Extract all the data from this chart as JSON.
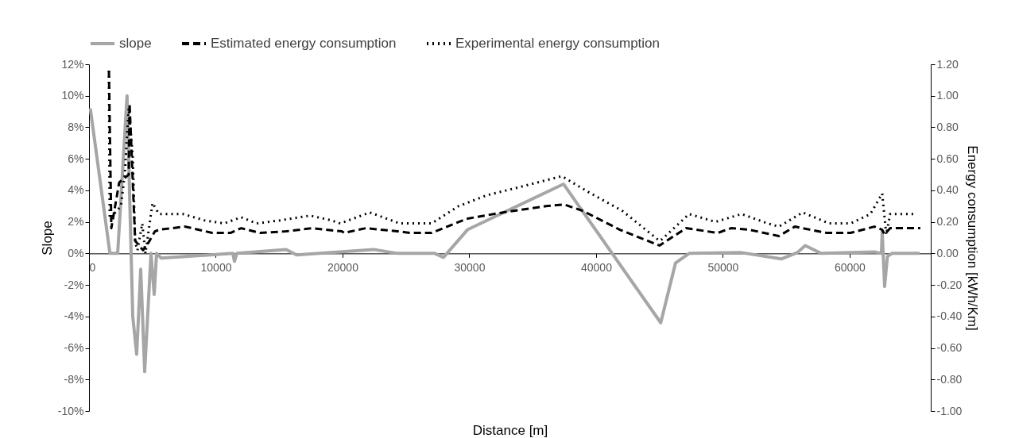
{
  "chart_data": {
    "type": "line",
    "xlabel": "Distance [m]",
    "ylabel": "Slope",
    "y2label": "Energy consumption [kWh/Km]",
    "xlim": [
      0,
      66400
    ],
    "xticks": [
      0,
      10000,
      20000,
      30000,
      40000,
      50000,
      60000
    ],
    "ylim": [
      -10,
      12
    ],
    "yticks": [
      {
        "value": -10,
        "label": "-10%"
      },
      {
        "value": -8,
        "label": "-8%"
      },
      {
        "value": -6,
        "label": "-6%"
      },
      {
        "value": -4,
        "label": "-4%"
      },
      {
        "value": -2,
        "label": "-2%"
      },
      {
        "value": 0,
        "label": "0%"
      },
      {
        "value": 2,
        "label": "2%"
      },
      {
        "value": 4,
        "label": "4%"
      },
      {
        "value": 6,
        "label": "6%"
      },
      {
        "value": 8,
        "label": "8%"
      },
      {
        "value": 10,
        "label": "10%"
      },
      {
        "value": 12,
        "label": "12%"
      }
    ],
    "y2lim": [
      -1,
      1.2
    ],
    "y2ticks": [
      {
        "value": -1,
        "label": "-1.00"
      },
      {
        "value": -0.8,
        "label": "-0.80"
      },
      {
        "value": -0.6,
        "label": "-0.60"
      },
      {
        "value": -0.4,
        "label": "-0.40"
      },
      {
        "value": -0.2,
        "label": "-0.20"
      },
      {
        "value": 0,
        "label": "0.00"
      },
      {
        "value": 0.2,
        "label": "0.20"
      },
      {
        "value": 0.4,
        "label": "0.40"
      },
      {
        "value": 0.6,
        "label": "0.60"
      },
      {
        "value": 0.8,
        "label": "0.80"
      },
      {
        "value": 1,
        "label": "1.00"
      },
      {
        "value": 1.2,
        "label": "1.20"
      }
    ],
    "grid": false,
    "legend": "top",
    "marker": "none",
    "series": [
      {
        "name": "slope",
        "color": "#a6a6a6",
        "line_style": "solid",
        "x": [
          100,
          1650,
          2260,
          3000,
          3450,
          3760,
          4080,
          4390,
          4890,
          5140,
          5330,
          5700,
          11350,
          11470,
          11660,
          15550,
          16370,
          22450,
          24330,
          27270,
          27960,
          29850,
          37430,
          45100,
          46270,
          47340,
          51480,
          54610,
          55870,
          56500,
          57750,
          61950,
          62510,
          62570,
          62760,
          62980,
          63330,
          65520
        ],
        "values": [
          9.2,
          0,
          0,
          10,
          -4,
          -6.4,
          -1,
          -7.5,
          0,
          -2.6,
          0,
          -0.3,
          0,
          -0.5,
          0,
          0.25,
          -0.1,
          0.25,
          0,
          0,
          -0.25,
          1.5,
          4.4,
          -4.4,
          -0.6,
          0,
          0.05,
          -0.35,
          0.05,
          0.5,
          0,
          0.1,
          0,
          1.4,
          -2.1,
          -0.2,
          0,
          0
        ]
      },
      {
        "name": "Estimated energy consumption",
        "color": "#000000",
        "line_style": "dashed",
        "axis": "y2",
        "x": [
          1570,
          1760,
          2380,
          3130,
          3200,
          3640,
          4260,
          4700,
          5200,
          5520,
          7590,
          9720,
          11160,
          12000,
          13480,
          15550,
          17620,
          19940,
          20130,
          21820,
          24330,
          25390,
          27020,
          29790,
          32670,
          36050,
          37490,
          38950,
          41880,
          45000,
          47100,
          49600,
          50650,
          52100,
          54420,
          55680,
          58190,
          60070,
          61950,
          62570,
          62760,
          63200,
          65580
        ],
        "values": [
          1.16,
          0.16,
          0.45,
          0.5,
          0.95,
          0.08,
          0.02,
          0.07,
          0.14,
          0.15,
          0.17,
          0.13,
          0.13,
          0.16,
          0.13,
          0.14,
          0.16,
          0.14,
          0.13,
          0.16,
          0.14,
          0.13,
          0.13,
          0.22,
          0.26,
          0.3,
          0.31,
          0.27,
          0.15,
          0.05,
          0.16,
          0.13,
          0.16,
          0.15,
          0.11,
          0.17,
          0.13,
          0.13,
          0.17,
          0.15,
          0.12,
          0.16,
          0.16
        ]
      },
      {
        "name": "Experimental energy consumption",
        "color": "#000000",
        "line_style": "dotted",
        "axis": "y2",
        "x": [
          1570,
          1630,
          2510,
          2820,
          3130,
          3450,
          3640,
          3820,
          4200,
          4450,
          5010,
          5520,
          7400,
          9090,
          10660,
          12000,
          13230,
          15110,
          17430,
          19120,
          19820,
          22140,
          24520,
          27020,
          29160,
          31420,
          33930,
          37300,
          39380,
          42070,
          45000,
          45200,
          47340,
          49410,
          51480,
          53550,
          54420,
          56300,
          58380,
          60070,
          61640,
          62570,
          62890,
          63200,
          65210
        ],
        "values": [
          1.16,
          0.22,
          0.3,
          0.5,
          0.92,
          0.62,
          0.07,
          0.02,
          0.19,
          0,
          0.32,
          0.25,
          0.25,
          0.21,
          0.19,
          0.23,
          0.19,
          0.21,
          0.24,
          0.21,
          0.19,
          0.26,
          0.19,
          0.19,
          0.3,
          0.37,
          0.42,
          0.49,
          0.39,
          0.27,
          0.08,
          0.09,
          0.25,
          0.2,
          0.25,
          0.19,
          0.17,
          0.26,
          0.19,
          0.19,
          0.25,
          0.38,
          0.12,
          0.25,
          0.25
        ]
      }
    ]
  }
}
